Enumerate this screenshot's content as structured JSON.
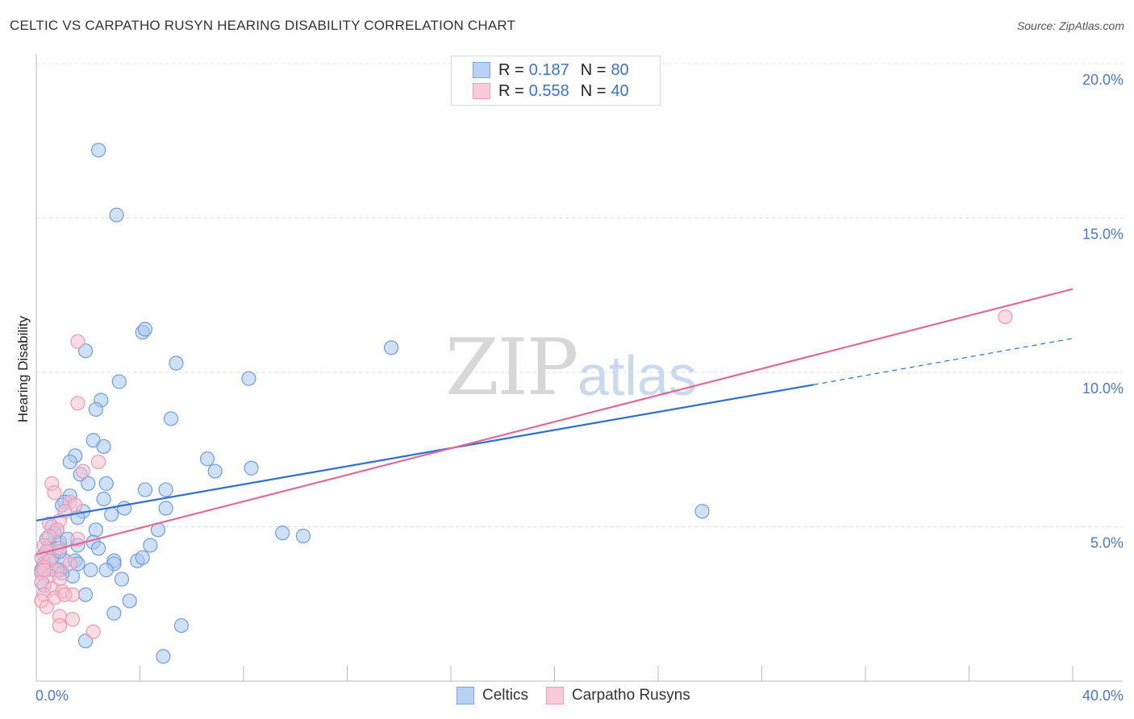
{
  "title": "CELTIC VS CARPATHO RUSYN HEARING DISABILITY CORRELATION CHART",
  "source": "Source: ZipAtlas.com",
  "watermark": {
    "zip": "ZIP",
    "atlas": "atlas"
  },
  "legend": [
    {
      "r_label": "R =",
      "r_value": "0.187",
      "n_label": "N =",
      "n_value": "80"
    },
    {
      "r_label": "R =",
      "r_value": "0.558",
      "n_label": "N =",
      "n_value": "40"
    }
  ],
  "bottom_legend": [
    "Celtics",
    "Carpatho Rusyns"
  ],
  "colors": {
    "celtic_fill": "#a9c7ef",
    "celtic_stroke": "#6f9ee0",
    "celtic_line": "#2f6fd0",
    "rusyn_fill": "#f6bfd0",
    "rusyn_stroke": "#ec9ab5",
    "rusyn_line": "#e06a98",
    "tick_text": "#4a78c2",
    "grid": "#dddddd"
  },
  "chart_data": {
    "type": "scatter",
    "xlabel": "",
    "ylabel": "Hearing Disability",
    "xlim": [
      0,
      40
    ],
    "ylim": [
      0,
      20
    ],
    "x_tick_labels": [
      "0.0%",
      "40.0%"
    ],
    "y_ticks": [
      5,
      10,
      15,
      20
    ],
    "y_tick_labels": [
      "5.0%",
      "10.0%",
      "15.0%",
      "20.0%"
    ],
    "grid": true,
    "series": [
      {
        "name": "Celtics",
        "R": 0.187,
        "N": 80,
        "trend": {
          "x0": 0,
          "y0": 5.2,
          "x1": 30,
          "y1": 9.6,
          "dash_to_x": 40,
          "dash_to_y": 11.1
        },
        "points": [
          [
            2.4,
            17.2
          ],
          [
            3.1,
            15.1
          ],
          [
            4.1,
            11.3
          ],
          [
            4.2,
            11.4
          ],
          [
            1.9,
            10.7
          ],
          [
            5.4,
            10.3
          ],
          [
            13.7,
            10.8
          ],
          [
            8.2,
            9.8
          ],
          [
            3.2,
            9.7
          ],
          [
            2.5,
            9.1
          ],
          [
            2.3,
            8.8
          ],
          [
            5.2,
            8.5
          ],
          [
            2.2,
            7.8
          ],
          [
            2.6,
            7.6
          ],
          [
            1.5,
            7.3
          ],
          [
            1.3,
            7.1
          ],
          [
            6.6,
            7.2
          ],
          [
            8.3,
            6.9
          ],
          [
            6.9,
            6.8
          ],
          [
            1.7,
            6.7
          ],
          [
            2.0,
            6.4
          ],
          [
            2.7,
            6.4
          ],
          [
            4.2,
            6.2
          ],
          [
            5.0,
            6.2
          ],
          [
            1.3,
            6.0
          ],
          [
            2.6,
            5.9
          ],
          [
            1.1,
            5.8
          ],
          [
            1.0,
            5.7
          ],
          [
            3.4,
            5.6
          ],
          [
            5.0,
            5.6
          ],
          [
            1.8,
            5.5
          ],
          [
            2.9,
            5.4
          ],
          [
            1.6,
            5.3
          ],
          [
            25.7,
            5.5
          ],
          [
            0.6,
            5.0
          ],
          [
            0.8,
            4.9
          ],
          [
            0.7,
            4.8
          ],
          [
            2.3,
            4.9
          ],
          [
            4.7,
            4.9
          ],
          [
            9.5,
            4.8
          ],
          [
            10.3,
            4.7
          ],
          [
            0.9,
            4.5
          ],
          [
            2.2,
            4.5
          ],
          [
            0.5,
            4.4
          ],
          [
            1.6,
            4.4
          ],
          [
            0.8,
            4.3
          ],
          [
            2.4,
            4.3
          ],
          [
            4.4,
            4.4
          ],
          [
            0.3,
            4.1
          ],
          [
            0.6,
            4.0
          ],
          [
            1.1,
            3.9
          ],
          [
            1.5,
            3.9
          ],
          [
            1.6,
            3.8
          ],
          [
            3.0,
            3.9
          ],
          [
            3.0,
            3.8
          ],
          [
            3.9,
            3.9
          ],
          [
            4.1,
            4.0
          ],
          [
            0.3,
            3.7
          ],
          [
            0.4,
            3.6
          ],
          [
            0.7,
            3.6
          ],
          [
            0.9,
            3.6
          ],
          [
            2.1,
            3.6
          ],
          [
            2.7,
            3.6
          ],
          [
            0.2,
            3.5
          ],
          [
            1.4,
            3.4
          ],
          [
            3.3,
            3.3
          ],
          [
            0.3,
            3.1
          ],
          [
            1.9,
            2.8
          ],
          [
            3.6,
            2.6
          ],
          [
            3.0,
            2.2
          ],
          [
            5.6,
            1.8
          ],
          [
            1.9,
            1.3
          ],
          [
            4.9,
            0.8
          ],
          [
            0.3,
            3.8
          ],
          [
            0.9,
            4.2
          ],
          [
            1.2,
            4.6
          ],
          [
            0.5,
            3.9
          ],
          [
            1.0,
            3.5
          ],
          [
            0.2,
            3.6
          ],
          [
            0.4,
            4.6
          ]
        ]
      },
      {
        "name": "Carpatho Rusyns",
        "R": 0.558,
        "N": 40,
        "trend": {
          "x0": 0,
          "y0": 4.1,
          "x1": 40,
          "y1": 12.7
        },
        "points": [
          [
            37.4,
            11.8
          ],
          [
            1.6,
            11.0
          ],
          [
            1.6,
            9.0
          ],
          [
            2.4,
            7.1
          ],
          [
            1.8,
            6.8
          ],
          [
            0.6,
            6.4
          ],
          [
            0.7,
            6.1
          ],
          [
            1.3,
            5.8
          ],
          [
            1.5,
            5.7
          ],
          [
            1.1,
            5.5
          ],
          [
            0.9,
            5.2
          ],
          [
            0.5,
            5.1
          ],
          [
            0.8,
            4.9
          ],
          [
            0.5,
            4.7
          ],
          [
            1.6,
            4.6
          ],
          [
            0.3,
            4.4
          ],
          [
            0.4,
            4.2
          ],
          [
            0.9,
            4.3
          ],
          [
            0.2,
            4.0
          ],
          [
            0.5,
            3.9
          ],
          [
            1.3,
            3.8
          ],
          [
            0.3,
            3.7
          ],
          [
            0.8,
            3.6
          ],
          [
            0.2,
            3.5
          ],
          [
            0.5,
            3.4
          ],
          [
            0.9,
            3.3
          ],
          [
            0.2,
            3.2
          ],
          [
            0.6,
            3.0
          ],
          [
            1.0,
            2.9
          ],
          [
            1.4,
            2.8
          ],
          [
            0.3,
            2.8
          ],
          [
            0.7,
            2.7
          ],
          [
            0.2,
            2.6
          ],
          [
            0.4,
            2.4
          ],
          [
            1.4,
            2.0
          ],
          [
            0.9,
            2.1
          ],
          [
            0.9,
            1.8
          ],
          [
            2.2,
            1.6
          ],
          [
            0.3,
            3.6
          ],
          [
            1.1,
            2.8
          ]
        ]
      }
    ]
  }
}
